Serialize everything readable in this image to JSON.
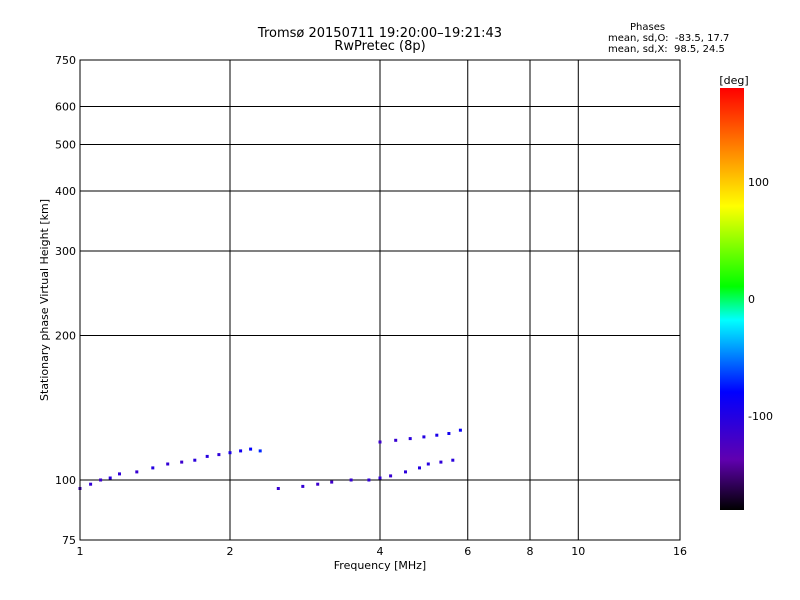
{
  "chart_data": {
    "type": "scatter",
    "title": "Tromsø 20150711 19:20:00–19:21:43",
    "subtitle": "RwPretec (8p)",
    "xlabel": "Frequency [MHz]",
    "ylabel": "Stationary phase Virtual Height [km]",
    "xscale": "log",
    "yscale": "log",
    "xlim": [
      1,
      16
    ],
    "ylim": [
      75,
      750
    ],
    "x_ticks": [
      1,
      2,
      4,
      6,
      8,
      10,
      16
    ],
    "y_ticks": [
      75,
      100,
      200,
      300,
      400,
      500,
      600,
      750
    ],
    "grid": true,
    "colorbar": {
      "label": "[deg]",
      "range": [
        -180,
        180
      ],
      "ticks": [
        100,
        0,
        -100
      ]
    },
    "stats": {
      "heading": "Phases",
      "line_o": "mean, sd,O:  -83.5, 17.7",
      "line_x": "mean, sd,X:  98.5, 24.5"
    },
    "series": [
      {
        "x": [
          1.0,
          1.05,
          1.1,
          1.15,
          1.2,
          1.3,
          1.4,
          1.5,
          1.6,
          1.7,
          1.8,
          1.9,
          2.0,
          2.1,
          2.2,
          2.3,
          2.5,
          2.8,
          3.0,
          3.2,
          3.5,
          3.8,
          4.0,
          4.2,
          4.5,
          4.8,
          5.0,
          5.3,
          5.6
        ],
        "y": [
          96,
          98,
          100,
          101,
          103,
          104,
          106,
          108,
          109,
          110,
          112,
          113,
          114,
          115,
          116,
          115,
          96,
          97,
          98,
          99,
          100,
          100,
          101,
          102,
          104,
          106,
          108,
          109,
          110
        ],
        "phase": [
          -120,
          -110,
          -115,
          -105,
          -108,
          -112,
          -100,
          -110,
          -115,
          -105,
          -102,
          -108,
          -95,
          -90,
          -80,
          -70,
          -112,
          -110,
          -115,
          -118,
          -112,
          -108,
          -110,
          -112,
          -105,
          -100,
          -102,
          -108,
          -104
        ]
      },
      {
        "x": [
          4.0,
          4.3,
          4.6,
          4.9,
          5.2,
          5.5,
          5.8
        ],
        "y": [
          120,
          121,
          122,
          123,
          124,
          125,
          127
        ],
        "phase": [
          -115,
          -112,
          -105,
          -100,
          -95,
          -90,
          -85
        ]
      }
    ]
  }
}
